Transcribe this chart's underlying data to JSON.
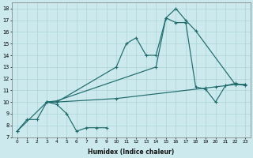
{
  "xlabel": "Humidex (Indice chaleur)",
  "bg_color": "#cce9ed",
  "grid_color": "#aed4d8",
  "line_color": "#1e6b6b",
  "xlim": [
    -0.5,
    23.5
  ],
  "ylim": [
    7,
    18.5
  ],
  "lineA_x": [
    0,
    1,
    2,
    3,
    4,
    10,
    11,
    12,
    13,
    14,
    15,
    16,
    17,
    18,
    22,
    23
  ],
  "lineA_y": [
    7.5,
    8.5,
    8.5,
    10.0,
    10.0,
    13.0,
    15.0,
    15.5,
    14.0,
    14.0,
    17.2,
    18.0,
    17.0,
    16.1,
    11.5,
    11.5
  ],
  "lineB_x": [
    3,
    4,
    14,
    15,
    16,
    17,
    18,
    19,
    20,
    21,
    22,
    23
  ],
  "lineB_y": [
    10.0,
    10.1,
    13.0,
    17.2,
    16.8,
    16.8,
    11.3,
    11.1,
    10.0,
    11.4,
    11.6,
    11.4
  ],
  "lineC_x": [
    0,
    3,
    4,
    10,
    19,
    20,
    21,
    22,
    23
  ],
  "lineC_y": [
    7.5,
    10.0,
    10.0,
    10.3,
    11.2,
    11.3,
    11.4,
    11.5,
    11.5
  ],
  "lineD_x": [
    3,
    4,
    5,
    6,
    7,
    8,
    9
  ],
  "lineD_y": [
    10.0,
    9.8,
    9.0,
    7.5,
    7.8,
    7.8,
    7.8
  ]
}
